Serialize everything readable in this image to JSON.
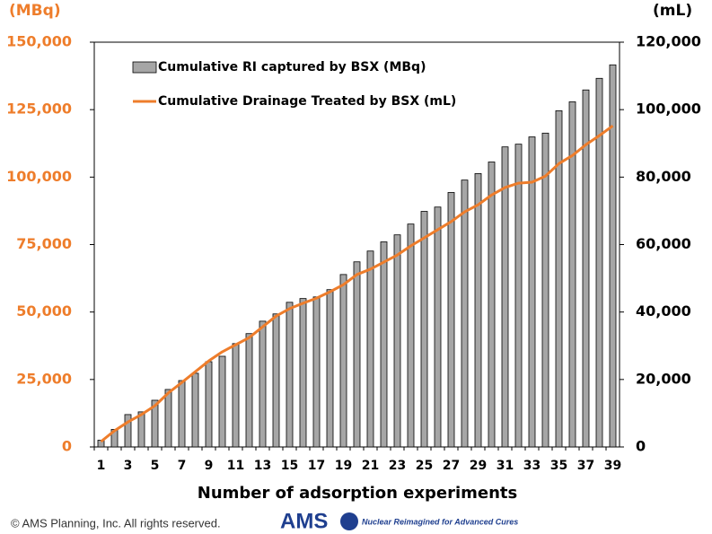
{
  "chart_data": {
    "type": "bar",
    "y_unit": "(MBq)",
    "y2_unit": "(mL)",
    "xlabel": "Number of adsorption experiments",
    "categories": [
      1,
      null,
      3,
      null,
      5,
      null,
      7,
      null,
      9,
      null,
      11,
      null,
      13,
      null,
      15,
      null,
      17,
      null,
      19,
      null,
      21,
      null,
      23,
      null,
      25,
      null,
      27,
      null,
      29,
      null,
      31,
      null,
      33,
      null,
      35,
      null,
      37,
      null,
      39
    ],
    "series": [
      {
        "name": "Cumulative RI captured by BSX (MBq)",
        "type": "bar",
        "axis": "y",
        "color": "#a6a6a6",
        "values": [
          2500,
          6500,
          12000,
          13000,
          17300,
          21300,
          24600,
          27300,
          31600,
          33600,
          38300,
          42000,
          46600,
          49300,
          53600,
          55000,
          55600,
          58300,
          63900,
          68600,
          72600,
          76000,
          78600,
          82600,
          87300,
          88900,
          94300,
          98900,
          101300,
          105600,
          111200,
          112200,
          114900,
          116300,
          124600,
          127900,
          132300,
          136600,
          141600
        ]
      },
      {
        "name": "Cumulative Drainage Treated by BSX (mL)",
        "type": "line",
        "axis": "y2",
        "color": "#ee7d2b",
        "values": [
          1600,
          4800,
          7400,
          9600,
          12200,
          16000,
          19100,
          22300,
          25500,
          28200,
          30300,
          32400,
          35600,
          38800,
          41000,
          42600,
          44100,
          46000,
          48100,
          51100,
          52700,
          54800,
          56900,
          59600,
          62000,
          64400,
          66800,
          69700,
          71800,
          74700,
          76900,
          78200,
          78500,
          80300,
          84000,
          86400,
          89600,
          92300,
          95200
        ]
      }
    ],
    "ylim": [
      0,
      150000
    ],
    "yticks": [
      0,
      {
        "value": 25000,
        "label": "25,000"
      },
      {
        "value": 50000,
        "label": "50,000"
      },
      {
        "value": 75000,
        "label": "75,000"
      },
      {
        "value": 100000,
        "label": "100,000"
      },
      {
        "value": 125000,
        "label": "125,000"
      },
      {
        "value": 150000,
        "label": "150,000"
      }
    ],
    "y_color": "#ee7d2b",
    "y2lim": [
      0,
      120000
    ],
    "y2ticks": [
      0,
      {
        "value": 20000,
        "label": "20,000"
      },
      {
        "value": 40000,
        "label": "40,000"
      },
      {
        "value": 60000,
        "label": "60,000"
      },
      {
        "value": 80000,
        "label": "80,000"
      },
      {
        "value": 100000,
        "label": "100,000"
      },
      {
        "value": 120000,
        "label": "120,000"
      }
    ],
    "y2_color": "#000000",
    "grid": false,
    "legend": "upper left"
  },
  "footer": {
    "copyright": "© AMS Planning, Inc. All rights reserved.",
    "logo": "AMS",
    "tagline": "Nuclear Reimagined for Advanced Cures"
  }
}
